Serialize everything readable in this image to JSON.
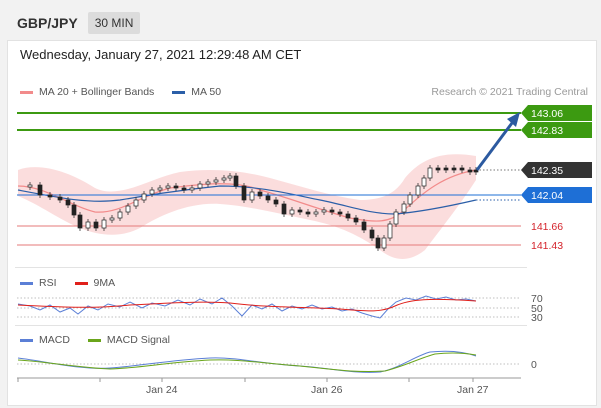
{
  "header": {
    "symbol": "GBP/JPY",
    "timeframe": "30 MIN"
  },
  "datetime": "Wednesday, January 27, 2021 12:29:48 AM CET",
  "legend": {
    "ma20_bollinger": {
      "label": "MA 20 + Bollinger Bands",
      "color": "#f28b8b"
    },
    "ma50": {
      "label": "MA 50",
      "color": "#2b5fa8"
    }
  },
  "credit": "Research © 2021 Trading Central",
  "price_levels": [
    {
      "value": "143.06",
      "kind": "resistance",
      "color": "#3c9a11"
    },
    {
      "value": "142.83",
      "kind": "resistance",
      "color": "#3c9a11"
    },
    {
      "value": "142.35",
      "kind": "last",
      "color": "#333333"
    },
    {
      "value": "142.04",
      "kind": "pivot",
      "color": "#1e6fd6"
    },
    {
      "value": "141.66",
      "kind": "support",
      "color": "#d4232b"
    },
    {
      "value": "141.43",
      "kind": "support",
      "color": "#d4232b"
    }
  ],
  "rsi": {
    "label": "RSI",
    "ma_label": "9MA",
    "colors": {
      "rsi": "#5b7fd6",
      "ma": "#e0201b"
    },
    "levels": [
      "70",
      "50",
      "30"
    ]
  },
  "macd": {
    "label": "MACD",
    "signal_label": "MACD Signal",
    "colors": {
      "macd": "#5b7fd6",
      "signal": "#6aa51b"
    },
    "levels": [
      "0"
    ]
  },
  "x_axis": {
    "ticks": [
      "Jan 24",
      "Jan 26",
      "Jan 27"
    ]
  },
  "chart_data": {
    "type": "line",
    "title": "GBP/JPY",
    "timeframe": "30 MIN",
    "y_range": [
      141.2,
      143.2
    ],
    "series": [
      {
        "name": "MA 20 + Bollinger Bands",
        "values": [
          141.95,
          141.9,
          141.85,
          141.82,
          141.9,
          142.0,
          142.08,
          142.12,
          142.05,
          141.98,
          141.92,
          141.85,
          141.9,
          142.15,
          142.28
        ]
      },
      {
        "name": "MA 50",
        "values": [
          142.05,
          142.03,
          142.02,
          142.03,
          142.05,
          142.08,
          142.1,
          142.12,
          142.1,
          142.07,
          142.03,
          141.98,
          141.94,
          141.97,
          142.03
        ]
      }
    ],
    "x_ticks": [
      "Jan 24",
      "Jan 26",
      "Jan 27"
    ]
  }
}
